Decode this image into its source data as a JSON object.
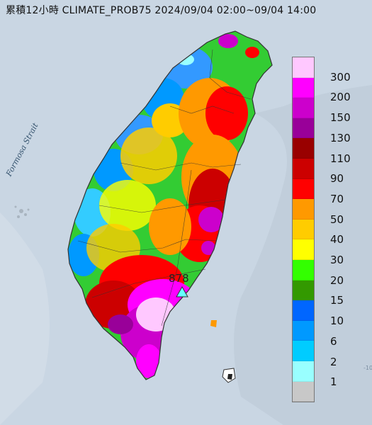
{
  "title": "累積12小時 CLIMATE_PROB75 2024/09/04 02:00~09/04 14:00",
  "sea_label": "Formosa Strait",
  "max_value_label": "878",
  "tick_label": "-10",
  "legend": {
    "labels": [
      "300",
      "200",
      "150",
      "130",
      "110",
      "90",
      "70",
      "50",
      "40",
      "30",
      "20",
      "15",
      "10",
      "6",
      "2",
      "1"
    ],
    "colors": [
      "#ffc8ff",
      "#ff00ff",
      "#cc00cc",
      "#990099",
      "#990000",
      "#cc0000",
      "#ff0000",
      "#ff9900",
      "#ffcc00",
      "#ffff00",
      "#33ff00",
      "#339900",
      "#0066ff",
      "#0099ff",
      "#00ccff",
      "#99ffff",
      "#c8c8c8"
    ]
  },
  "colors": {
    "sea": "#c9d6e3",
    "land_low": "#9aa9b5",
    "peak_marker": "#66ffff"
  }
}
